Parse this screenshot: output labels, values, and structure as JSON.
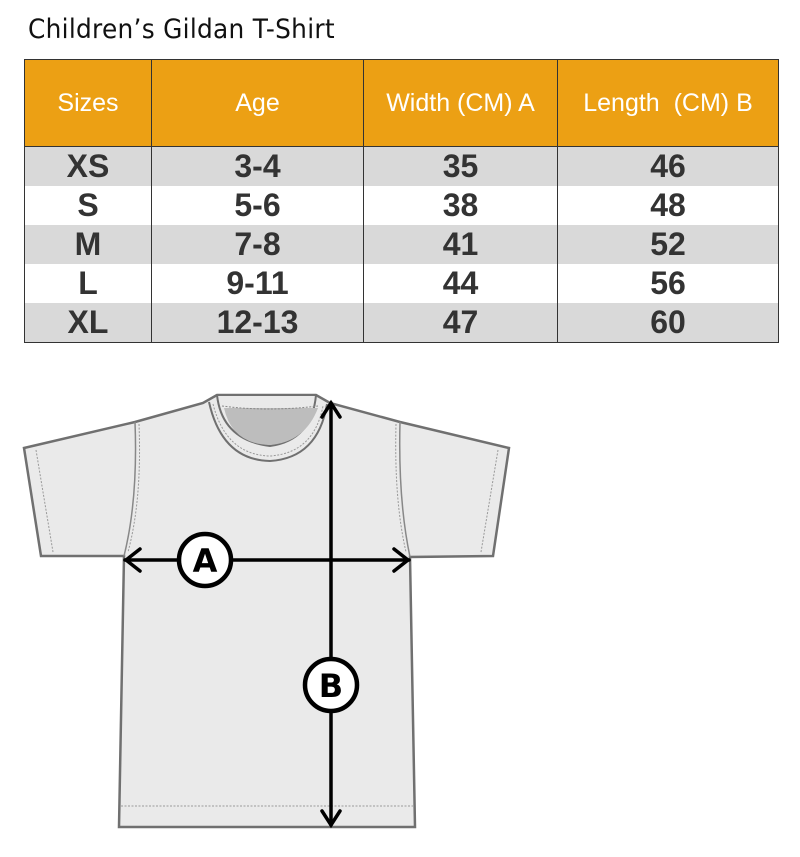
{
  "title": "Children’s Gildan T-Shirt",
  "table": {
    "headers": [
      "Sizes",
      "Age",
      "Width (CM) A",
      "Length  (CM) B"
    ],
    "rows": [
      [
        "XS",
        "3-4",
        "35",
        "46"
      ],
      [
        "S",
        "5-6",
        "38",
        "48"
      ],
      [
        "M",
        "7-8",
        "41",
        "52"
      ],
      [
        "L",
        "9-11",
        "44",
        "56"
      ],
      [
        "XL",
        "12-13",
        "47",
        "60"
      ]
    ]
  },
  "diagram": {
    "label_a": "A",
    "label_b": "B"
  },
  "colors": {
    "header": "#ECA014",
    "stripe": "#D9D9D9"
  }
}
